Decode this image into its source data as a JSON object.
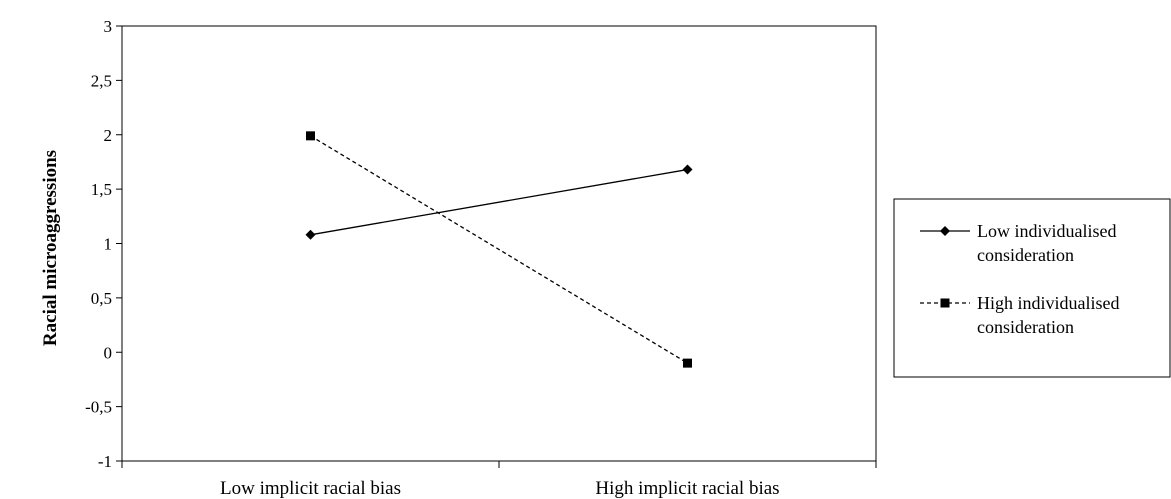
{
  "chart_data": {
    "type": "line",
    "categories": [
      "Low implicit racial bias",
      "High implicit racial bias"
    ],
    "ylabel": "Racial microaggressions",
    "xlabel": "",
    "ylim": [
      -1,
      3
    ],
    "yticks": [
      "3",
      "2,5",
      "2",
      "1,5",
      "1",
      "0,5",
      "0",
      "-0,5",
      "-1"
    ],
    "grid": false,
    "legend_position": "right",
    "series": [
      {
        "name": "Low individualised consideration",
        "legend_lines": [
          "Low individualised",
          "consideration"
        ],
        "values": [
          1.08,
          1.68
        ],
        "marker": "diamond",
        "dash": "solid",
        "color": "#000000"
      },
      {
        "name": "High individualised consideration",
        "legend_lines": [
          "High individualised",
          "consideration"
        ],
        "values": [
          1.99,
          -0.1
        ],
        "marker": "square",
        "dash": "dashed",
        "color": "#000000"
      }
    ]
  }
}
